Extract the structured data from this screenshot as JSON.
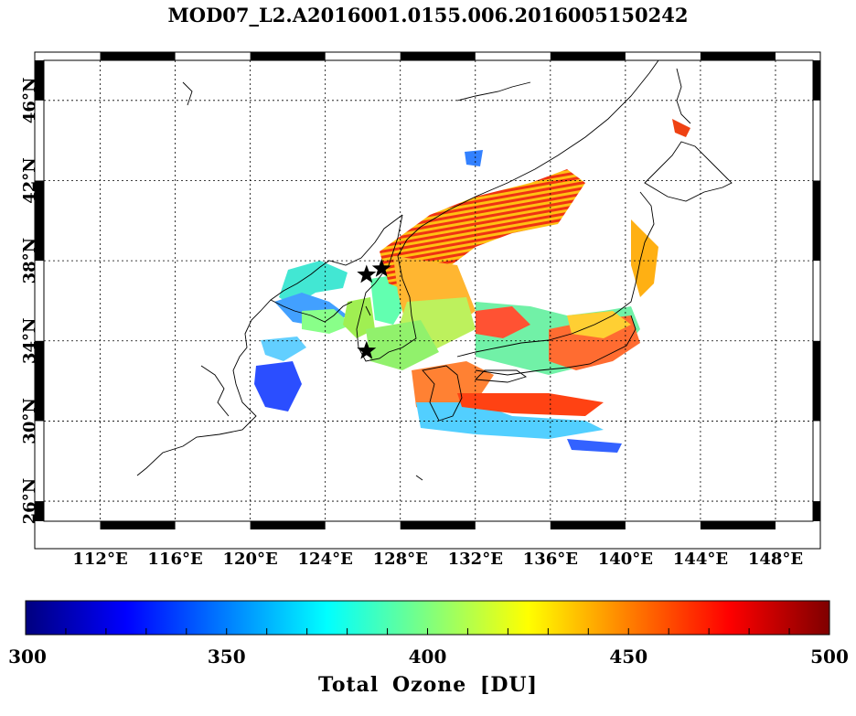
{
  "title": "MOD07_L2.A2016001.0155.006.2016005150242",
  "map": {
    "lon_range": [
      109,
      150
    ],
    "lat_range": [
      25,
      48
    ],
    "lon_ticks": [
      "112°E",
      "116°E",
      "120°E",
      "124°E",
      "128°E",
      "132°E",
      "136°E",
      "140°E",
      "144°E",
      "148°E"
    ],
    "lat_ticks": [
      "26°N",
      "30°N",
      "34°N",
      "38°N",
      "42°N",
      "46°N"
    ],
    "lon_values": [
      112,
      116,
      120,
      124,
      128,
      132,
      136,
      140,
      144,
      148
    ],
    "lat_values": [
      26,
      30,
      34,
      38,
      42,
      46
    ],
    "station_markers": [
      {
        "lon": 126.2,
        "lat": 37.3
      },
      {
        "lon": 127.0,
        "lat": 37.6
      },
      {
        "lon": 126.2,
        "lat": 33.5
      }
    ]
  },
  "colorbar": {
    "min": 300,
    "max": 500,
    "tick_labels": [
      "300",
      "350",
      "400",
      "450",
      "500"
    ],
    "label": "Total Ozone [DU]",
    "colors": [
      "#00007f",
      "#0000ff",
      "#007fff",
      "#00ffff",
      "#7fff7f",
      "#ffff00",
      "#ff7f00",
      "#ff0000",
      "#7f0000"
    ]
  }
}
